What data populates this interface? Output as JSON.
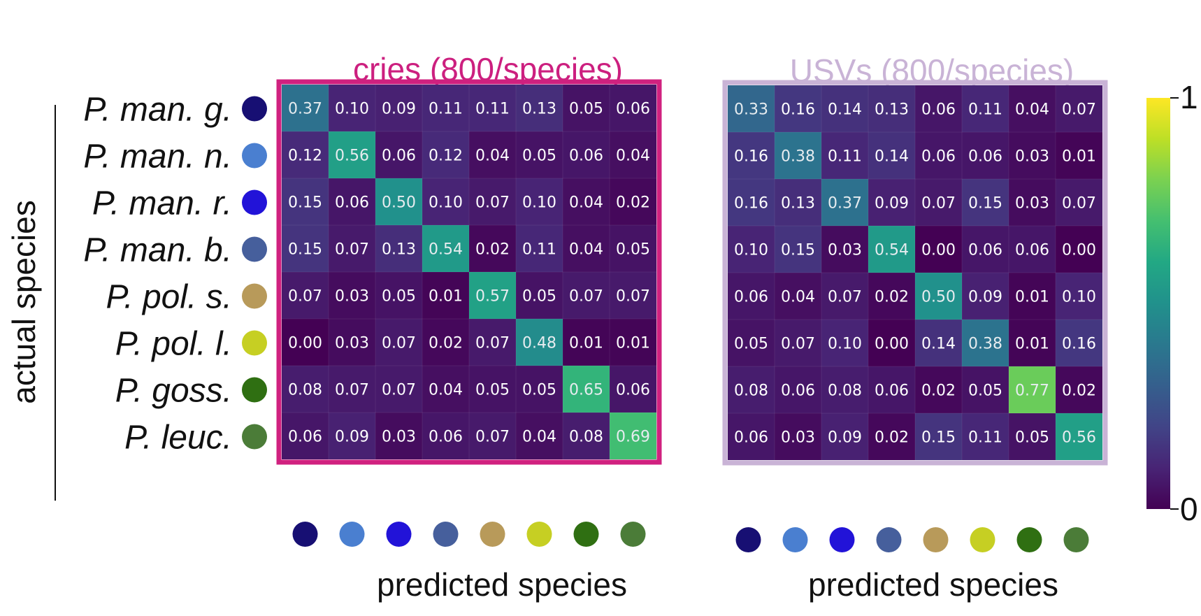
{
  "chart_data": [
    {
      "type": "heatmap",
      "title": "cries (800/species)",
      "title_color": "#cc1f7f",
      "frame_color": "#d0217f",
      "ylabel": "actual species",
      "xlabel": "predicted species",
      "rows": [
        "P. man. g.",
        "P. man. n.",
        "P. man. r.",
        "P. man. b.",
        "P. pol. s.",
        "P. pol. l.",
        "P. goss.",
        "P. leuc."
      ],
      "values": [
        [
          0.37,
          0.1,
          0.09,
          0.11,
          0.11,
          0.13,
          0.05,
          0.06
        ],
        [
          0.12,
          0.56,
          0.06,
          0.12,
          0.04,
          0.05,
          0.06,
          0.04
        ],
        [
          0.15,
          0.06,
          0.5,
          0.1,
          0.07,
          0.1,
          0.04,
          0.02
        ],
        [
          0.15,
          0.07,
          0.13,
          0.54,
          0.02,
          0.11,
          0.04,
          0.05
        ],
        [
          0.07,
          0.03,
          0.05,
          0.01,
          0.57,
          0.05,
          0.07,
          0.07
        ],
        [
          0.0,
          0.03,
          0.07,
          0.02,
          0.07,
          0.48,
          0.01,
          0.01
        ],
        [
          0.08,
          0.07,
          0.07,
          0.04,
          0.05,
          0.05,
          0.65,
          0.06
        ],
        [
          0.06,
          0.09,
          0.03,
          0.06,
          0.07,
          0.04,
          0.08,
          0.69
        ]
      ],
      "value_labels": [
        [
          "0.37",
          "0.10",
          "0.09",
          "0.11",
          "0.11",
          "0.13",
          "0.05",
          "0.06"
        ],
        [
          "0.12",
          "0.56",
          "0.06",
          "0.12",
          "0.04",
          "0.05",
          "0.06",
          "0.04"
        ],
        [
          "0.15",
          "0.06",
          "0.50",
          "0.10",
          "0.07",
          "0.10",
          "0.04",
          "0.02"
        ],
        [
          "0.15",
          "0.07",
          "0.13",
          "0.54",
          "0.02",
          "0.11",
          "0.04",
          "0.05"
        ],
        [
          "0.07",
          "0.03",
          "0.05",
          "0.01",
          "0.57",
          "0.05",
          "0.07",
          "0.07"
        ],
        [
          "0.00",
          "0.03",
          "0.07",
          "0.02",
          "0.07",
          "0.48",
          "0.01",
          "0.01"
        ],
        [
          "0.08",
          "0.07",
          "0.07",
          "0.04",
          "0.05",
          "0.05",
          "0.65",
          "0.06"
        ],
        [
          "0.06",
          "0.09",
          "0.03",
          "0.06",
          "0.07",
          "0.04",
          "0.08",
          "0.69"
        ]
      ],
      "clim": [
        0,
        1
      ]
    },
    {
      "type": "heatmap",
      "title": "USVs (800/species)",
      "title_color": "#c9b3d6",
      "frame_color": "#c9b3d6",
      "xlabel": "predicted species",
      "values": [
        [
          0.33,
          0.16,
          0.14,
          0.13,
          0.06,
          0.11,
          0.04,
          0.07
        ],
        [
          0.16,
          0.38,
          0.11,
          0.14,
          0.06,
          0.06,
          0.03,
          0.01
        ],
        [
          0.16,
          0.13,
          0.37,
          0.09,
          0.07,
          0.15,
          0.03,
          0.07
        ],
        [
          0.1,
          0.15,
          0.03,
          0.54,
          0.0,
          0.06,
          0.06,
          0.0
        ],
        [
          0.06,
          0.04,
          0.07,
          0.02,
          0.5,
          0.09,
          0.01,
          0.1
        ],
        [
          0.05,
          0.07,
          0.1,
          0.0,
          0.14,
          0.38,
          0.01,
          0.16
        ],
        [
          0.08,
          0.06,
          0.08,
          0.06,
          0.02,
          0.05,
          0.77,
          0.02
        ],
        [
          0.06,
          0.03,
          0.09,
          0.02,
          0.15,
          0.11,
          0.05,
          0.56
        ]
      ],
      "value_labels": [
        [
          "0.33",
          "0.16",
          "0.14",
          "0.13",
          "0.06",
          "0.11",
          "0.04",
          "0.07"
        ],
        [
          "0.16",
          "0.38",
          "0.11",
          "0.14",
          "0.06",
          "0.06",
          "0.03",
          "0.01"
        ],
        [
          "0.16",
          "0.13",
          "0.37",
          "0.09",
          "0.07",
          "0.15",
          "0.03",
          "0.07"
        ],
        [
          "0.10",
          "0.15",
          "0.03",
          "0.54",
          "0.00",
          "0.06",
          "0.06",
          "0.00"
        ],
        [
          "0.06",
          "0.04",
          "0.07",
          "0.02",
          "0.50",
          "0.09",
          "0.01",
          "0.10"
        ],
        [
          "0.05",
          "0.07",
          "0.10",
          "0.00",
          "0.14",
          "0.38",
          "0.01",
          "0.16"
        ],
        [
          "0.08",
          "0.06",
          "0.08",
          "0.06",
          "0.02",
          "0.05",
          "0.77",
          "0.02"
        ],
        [
          "0.06",
          "0.03",
          "0.09",
          "0.02",
          "0.15",
          "0.11",
          "0.05",
          "0.56"
        ]
      ],
      "clim": [
        0,
        1
      ]
    }
  ],
  "species_colors": [
    "#170f73",
    "#4a7fd0",
    "#2213d8",
    "#465f9c",
    "#b89a5a",
    "#c6cf23",
    "#2f6f12",
    "#4b7c38"
  ],
  "colorbar": {
    "min_label": "0",
    "max_label": "1",
    "colormap": "viridis"
  }
}
